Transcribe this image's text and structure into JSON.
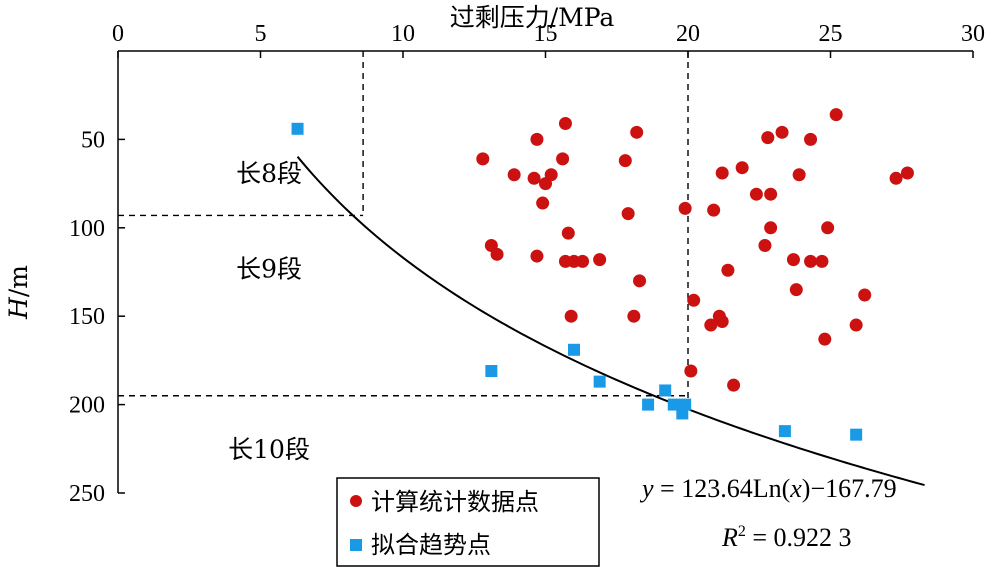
{
  "chart_data": {
    "type": "scatter",
    "xlabel": "过剩压力/MPa",
    "ylabel": {
      "italic": "H",
      "rest": "/m"
    },
    "xlim": [
      0,
      30
    ],
    "ylim": [
      250,
      0
    ],
    "x_axis_position": "top",
    "y_axis_inverted": true,
    "grid": false,
    "x_ticks": [
      "0",
      "5",
      "10",
      "15",
      "20",
      "25",
      "30"
    ],
    "x_tick_values": [
      0,
      5,
      10,
      15,
      20,
      25,
      30
    ],
    "y_ticks": [
      "50",
      "100",
      "150",
      "200",
      "250"
    ],
    "y_tick_values": [
      50,
      100,
      150,
      200,
      250
    ],
    "legend_position": "bottom-center",
    "series": [
      {
        "name": "计算统计数据点",
        "marker": "circle",
        "color": "#cc1111",
        "points": [
          [
            12.8,
            61
          ],
          [
            13.1,
            110
          ],
          [
            13.3,
            115
          ],
          [
            13.9,
            70
          ],
          [
            14.6,
            72
          ],
          [
            14.7,
            50
          ],
          [
            14.7,
            116
          ],
          [
            14.9,
            86
          ],
          [
            15.0,
            75
          ],
          [
            15.2,
            70
          ],
          [
            15.6,
            61
          ],
          [
            15.7,
            41
          ],
          [
            15.7,
            119
          ],
          [
            15.8,
            103
          ],
          [
            15.9,
            150
          ],
          [
            16.0,
            119
          ],
          [
            16.3,
            119
          ],
          [
            16.9,
            118
          ],
          [
            17.8,
            62
          ],
          [
            17.9,
            92
          ],
          [
            18.1,
            150
          ],
          [
            18.2,
            46
          ],
          [
            18.3,
            130
          ],
          [
            19.9,
            89
          ],
          [
            20.1,
            181
          ],
          [
            20.2,
            141
          ],
          [
            20.8,
            155
          ],
          [
            20.9,
            90
          ],
          [
            21.1,
            150
          ],
          [
            21.2,
            69
          ],
          [
            21.2,
            153
          ],
          [
            21.4,
            124
          ],
          [
            21.6,
            189
          ],
          [
            21.9,
            66
          ],
          [
            22.4,
            81
          ],
          [
            22.7,
            110
          ],
          [
            22.8,
            49
          ],
          [
            22.9,
            81
          ],
          [
            22.9,
            100
          ],
          [
            23.3,
            46
          ],
          [
            23.7,
            118
          ],
          [
            23.8,
            135
          ],
          [
            23.9,
            70
          ],
          [
            24.3,
            50
          ],
          [
            24.3,
            119
          ],
          [
            24.7,
            119
          ],
          [
            24.8,
            163
          ],
          [
            24.9,
            100
          ],
          [
            25.2,
            36
          ],
          [
            25.9,
            155
          ],
          [
            26.2,
            138
          ],
          [
            27.3,
            72
          ],
          [
            27.7,
            69
          ]
        ]
      },
      {
        "name": "拟合趋势点",
        "marker": "square",
        "color": "#1a9ae6",
        "points": [
          [
            6.3,
            44
          ],
          [
            13.1,
            181
          ],
          [
            16.0,
            169
          ],
          [
            16.9,
            187
          ],
          [
            18.6,
            200
          ],
          [
            19.2,
            192
          ],
          [
            19.5,
            200
          ],
          [
            19.8,
            205
          ],
          [
            19.9,
            200
          ],
          [
            23.4,
            215
          ],
          [
            25.9,
            217
          ]
        ]
      }
    ],
    "fit": {
      "expression": "y = 123.64 ln(x) - 167.79",
      "a": 123.64,
      "b": -167.79,
      "x_range": [
        6.3,
        28.3
      ]
    },
    "dashed_lines": [
      {
        "x": [
          8.6,
          8.6
        ],
        "y": [
          0,
          93
        ]
      },
      {
        "x": [
          0,
          8.6
        ],
        "y": [
          93,
          93
        ]
      },
      {
        "x": [
          20.0,
          20.0
        ],
        "y": [
          0,
          200
        ]
      },
      {
        "x": [
          0,
          20.0
        ],
        "y": [
          195,
          195
        ]
      }
    ],
    "segments": [
      {
        "label": "长8段",
        "x": 5.3,
        "y": 69
      },
      {
        "label": "长9段",
        "x": 5.3,
        "y": 123
      },
      {
        "label": "长10段",
        "x": 5.3,
        "y": 225
      }
    ],
    "annotation": {
      "equation": {
        "y": "y",
        "eq": " = 123.64Ln(",
        "x": "x",
        "rest": ")−167.79"
      },
      "r2": {
        "r": "R",
        "sup": "2",
        "rest": " = 0.922 3"
      }
    }
  }
}
